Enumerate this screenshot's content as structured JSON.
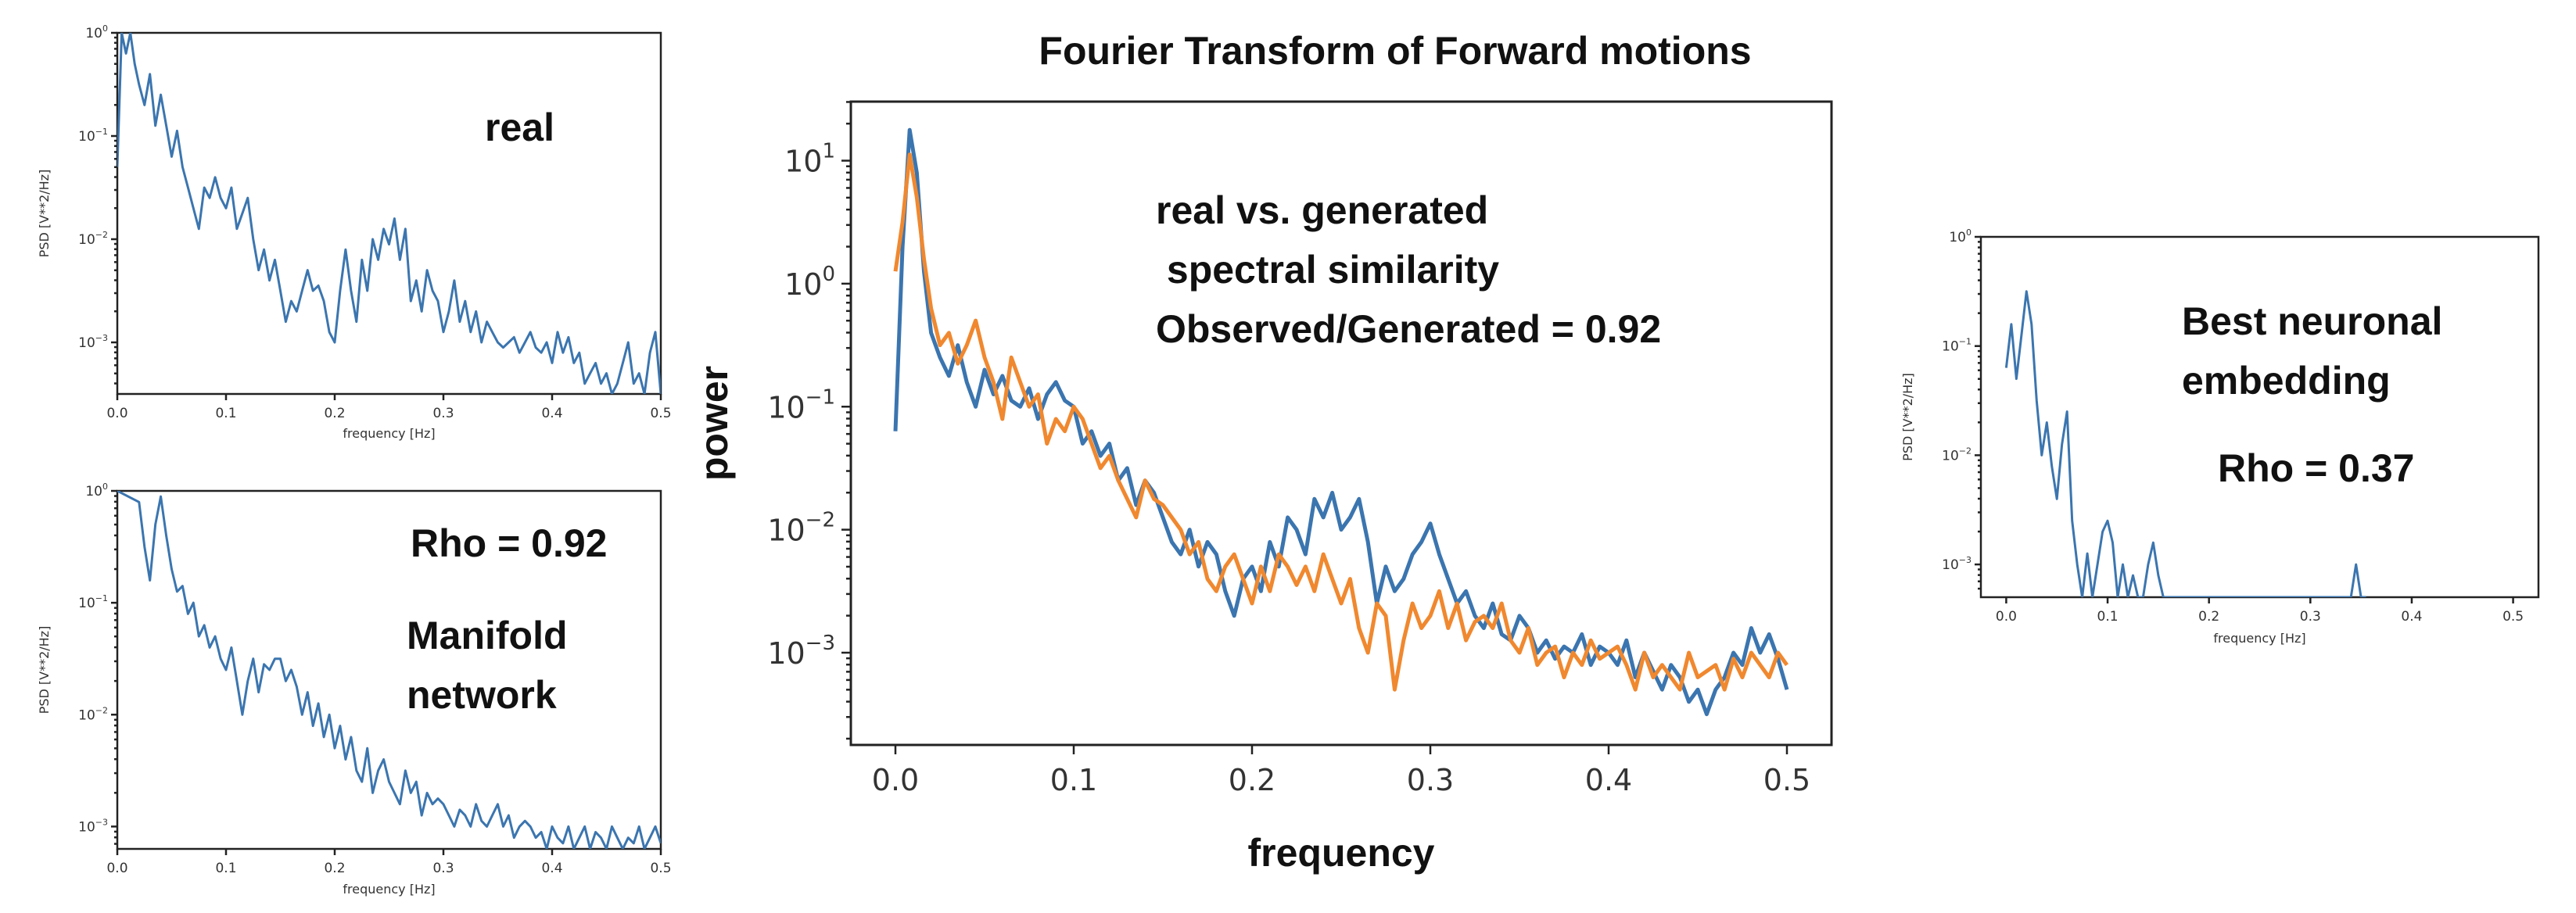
{
  "chart_data": [
    {
      "id": "real",
      "type": "line",
      "xlabel": "frequency [Hz]",
      "ylabel": "PSD [V**2/Hz]",
      "xlim": [
        0,
        0.5
      ],
      "ylim_log10": [
        -3.5,
        0
      ],
      "yscale": "log",
      "xticks": [
        "0.0",
        "0.1",
        "0.2",
        "0.3",
        "0.4",
        "0.5"
      ],
      "yticks": [
        {
          "exp": 0,
          "label": "10"
        },
        {
          "exp": -1,
          "label": "10"
        },
        {
          "exp": -2,
          "label": "10"
        },
        {
          "exp": -3,
          "label": "10"
        }
      ],
      "annotations": [
        "real"
      ],
      "color": "#3b75af",
      "series": [
        {
          "x": [
            0.0,
            0.004,
            0.008,
            0.012,
            0.016,
            0.02,
            0.025,
            0.03,
            0.035,
            0.04,
            0.045,
            0.05,
            0.055,
            0.06,
            0.065,
            0.07,
            0.075,
            0.08,
            0.085,
            0.09,
            0.095,
            0.1,
            0.105,
            0.11,
            0.115,
            0.12,
            0.125,
            0.13,
            0.135,
            0.14,
            0.145,
            0.15,
            0.155,
            0.16,
            0.165,
            0.17,
            0.175,
            0.18,
            0.185,
            0.19,
            0.195,
            0.2,
            0.205,
            0.21,
            0.215,
            0.22,
            0.225,
            0.23,
            0.235,
            0.24,
            0.245,
            0.25,
            0.255,
            0.26,
            0.265,
            0.27,
            0.275,
            0.28,
            0.285,
            0.29,
            0.295,
            0.3,
            0.305,
            0.31,
            0.315,
            0.32,
            0.325,
            0.33,
            0.335,
            0.34,
            0.345,
            0.35,
            0.355,
            0.36,
            0.365,
            0.37,
            0.375,
            0.38,
            0.385,
            0.39,
            0.395,
            0.4,
            0.405,
            0.41,
            0.415,
            0.42,
            0.425,
            0.43,
            0.435,
            0.44,
            0.445,
            0.45,
            0.455,
            0.46,
            0.465,
            0.47,
            0.475,
            0.48,
            0.485,
            0.49,
            0.495,
            0.5
          ],
          "log10": [
            -1.3,
            0.0,
            -0.2,
            0.0,
            -0.3,
            -0.5,
            -0.7,
            -0.4,
            -0.9,
            -0.6,
            -0.9,
            -1.2,
            -0.95,
            -1.3,
            -1.5,
            -1.7,
            -1.9,
            -1.5,
            -1.6,
            -1.4,
            -1.6,
            -1.7,
            -1.5,
            -1.9,
            -1.75,
            -1.6,
            -2.0,
            -2.3,
            -2.1,
            -2.4,
            -2.2,
            -2.5,
            -2.8,
            -2.6,
            -2.7,
            -2.5,
            -2.3,
            -2.5,
            -2.45,
            -2.6,
            -2.9,
            -3.0,
            -2.5,
            -2.1,
            -2.5,
            -2.8,
            -2.2,
            -2.5,
            -2.0,
            -2.2,
            -1.9,
            -2.05,
            -1.8,
            -2.2,
            -1.9,
            -2.6,
            -2.4,
            -2.7,
            -2.3,
            -2.5,
            -2.6,
            -2.9,
            -2.7,
            -2.4,
            -2.8,
            -2.6,
            -2.9,
            -2.7,
            -3.0,
            -2.8,
            -2.9,
            -3.0,
            -3.05,
            -3.0,
            -2.95,
            -3.1,
            -3.0,
            -2.9,
            -3.05,
            -3.1,
            -3.0,
            -3.2,
            -2.9,
            -3.1,
            -2.95,
            -3.2,
            -3.1,
            -3.4,
            -3.3,
            -3.2,
            -3.4,
            -3.3,
            -3.5,
            -3.4,
            -3.2,
            -3.0,
            -3.4,
            -3.3,
            -3.5,
            -3.1,
            -2.9,
            -3.5
          ]
        }
      ]
    },
    {
      "id": "manifold",
      "type": "line",
      "xlabel": "frequency [Hz]",
      "ylabel": "PSD [V**2/Hz]",
      "xlim": [
        0,
        0.5
      ],
      "ylim_log10": [
        -3.2,
        0
      ],
      "yscale": "log",
      "xticks": [
        "0.0",
        "0.1",
        "0.2",
        "0.3",
        "0.4",
        "0.5"
      ],
      "yticks": [
        {
          "exp": 0,
          "label": "10"
        },
        {
          "exp": -1,
          "label": "10"
        },
        {
          "exp": -2,
          "label": "10"
        },
        {
          "exp": -3,
          "label": "10"
        }
      ],
      "annotations": [
        "Rho = 0.92",
        "Manifold",
        "network"
      ],
      "color": "#3b75af",
      "series": [
        {
          "x": [
            0.0,
            0.02,
            0.025,
            0.03,
            0.035,
            0.04,
            0.045,
            0.05,
            0.055,
            0.06,
            0.065,
            0.07,
            0.075,
            0.08,
            0.085,
            0.09,
            0.095,
            0.1,
            0.105,
            0.11,
            0.115,
            0.12,
            0.125,
            0.13,
            0.135,
            0.14,
            0.145,
            0.15,
            0.155,
            0.16,
            0.165,
            0.17,
            0.175,
            0.18,
            0.185,
            0.19,
            0.195,
            0.2,
            0.205,
            0.21,
            0.215,
            0.22,
            0.225,
            0.23,
            0.235,
            0.24,
            0.245,
            0.25,
            0.255,
            0.26,
            0.265,
            0.27,
            0.275,
            0.28,
            0.285,
            0.29,
            0.295,
            0.3,
            0.305,
            0.31,
            0.315,
            0.32,
            0.325,
            0.33,
            0.335,
            0.34,
            0.345,
            0.35,
            0.355,
            0.36,
            0.365,
            0.37,
            0.375,
            0.38,
            0.385,
            0.39,
            0.395,
            0.4,
            0.405,
            0.41,
            0.415,
            0.42,
            0.425,
            0.43,
            0.435,
            0.44,
            0.445,
            0.45,
            0.455,
            0.46,
            0.465,
            0.47,
            0.475,
            0.48,
            0.485,
            0.49,
            0.495,
            0.5
          ],
          "log10": [
            0.0,
            -0.1,
            -0.5,
            -0.8,
            -0.3,
            -0.05,
            -0.4,
            -0.7,
            -0.9,
            -0.85,
            -1.1,
            -1.0,
            -1.3,
            -1.2,
            -1.4,
            -1.3,
            -1.5,
            -1.6,
            -1.4,
            -1.7,
            -2.0,
            -1.7,
            -1.5,
            -1.8,
            -1.55,
            -1.6,
            -1.5,
            -1.5,
            -1.7,
            -1.6,
            -1.75,
            -2.0,
            -1.8,
            -2.1,
            -1.9,
            -2.2,
            -2.0,
            -2.3,
            -2.1,
            -2.4,
            -2.2,
            -2.5,
            -2.6,
            -2.3,
            -2.7,
            -2.5,
            -2.4,
            -2.6,
            -2.7,
            -2.8,
            -2.5,
            -2.7,
            -2.6,
            -2.9,
            -2.7,
            -2.8,
            -2.75,
            -2.8,
            -2.9,
            -3.0,
            -2.85,
            -2.9,
            -3.0,
            -2.8,
            -2.95,
            -3.0,
            -2.9,
            -2.8,
            -3.0,
            -2.9,
            -3.1,
            -3.0,
            -2.95,
            -3.0,
            -3.1,
            -3.05,
            -3.2,
            -3.0,
            -3.1,
            -3.15,
            -3.0,
            -3.2,
            -3.1,
            -3.0,
            -3.2,
            -3.05,
            -3.1,
            -3.2,
            -3.0,
            -3.1,
            -3.2,
            -3.1,
            -3.15,
            -3.0,
            -3.2,
            -3.1,
            -3.0,
            -3.15
          ]
        }
      ]
    },
    {
      "id": "fourier",
      "type": "line",
      "title": "Fourier Transform of Forward motions",
      "xlabel": "frequency",
      "ylabel": "power",
      "xlim": [
        -0.025,
        0.525
      ],
      "ylim_log10": [
        -3.75,
        1.48
      ],
      "yscale": "log",
      "xticks": [
        "0.0",
        "0.1",
        "0.2",
        "0.3",
        "0.4",
        "0.5"
      ],
      "yticks": [
        {
          "exp": 1,
          "label": "10"
        },
        {
          "exp": 0,
          "label": "10"
        },
        {
          "exp": -1,
          "label": "10"
        },
        {
          "exp": -2,
          "label": "10"
        },
        {
          "exp": -3,
          "label": "10"
        }
      ],
      "annotations": [
        "real vs. generated",
        " spectral similarity",
        "Observed/Generated = 0.92"
      ],
      "series": [
        {
          "color": "#3b75af",
          "x": [
            0.0,
            0.004,
            0.008,
            0.012,
            0.016,
            0.02,
            0.025,
            0.03,
            0.035,
            0.04,
            0.045,
            0.05,
            0.055,
            0.06,
            0.065,
            0.07,
            0.075,
            0.08,
            0.085,
            0.09,
            0.095,
            0.1,
            0.105,
            0.11,
            0.115,
            0.12,
            0.125,
            0.13,
            0.135,
            0.14,
            0.145,
            0.15,
            0.155,
            0.16,
            0.165,
            0.17,
            0.175,
            0.18,
            0.185,
            0.19,
            0.195,
            0.2,
            0.205,
            0.21,
            0.215,
            0.22,
            0.225,
            0.23,
            0.235,
            0.24,
            0.245,
            0.25,
            0.255,
            0.26,
            0.265,
            0.27,
            0.275,
            0.28,
            0.285,
            0.29,
            0.295,
            0.3,
            0.305,
            0.31,
            0.315,
            0.32,
            0.325,
            0.33,
            0.335,
            0.34,
            0.345,
            0.35,
            0.355,
            0.36,
            0.365,
            0.37,
            0.375,
            0.38,
            0.385,
            0.39,
            0.395,
            0.4,
            0.405,
            0.41,
            0.415,
            0.42,
            0.425,
            0.43,
            0.435,
            0.44,
            0.445,
            0.45,
            0.455,
            0.46,
            0.465,
            0.47,
            0.475,
            0.48,
            0.485,
            0.49,
            0.495,
            0.5
          ],
          "log10": [
            -1.2,
            0.3,
            1.25,
            0.9,
            0.1,
            -0.4,
            -0.6,
            -0.75,
            -0.5,
            -0.8,
            -1.0,
            -0.7,
            -0.9,
            -0.75,
            -0.95,
            -1.0,
            -0.85,
            -1.1,
            -0.9,
            -0.8,
            -0.95,
            -1.0,
            -1.3,
            -1.2,
            -1.4,
            -1.3,
            -1.6,
            -1.5,
            -1.8,
            -1.6,
            -1.7,
            -1.9,
            -2.1,
            -2.2,
            -2.0,
            -2.3,
            -2.1,
            -2.2,
            -2.5,
            -2.7,
            -2.4,
            -2.3,
            -2.5,
            -2.1,
            -2.3,
            -1.9,
            -2.0,
            -2.2,
            -1.75,
            -1.9,
            -1.7,
            -2.0,
            -1.9,
            -1.75,
            -2.1,
            -2.6,
            -2.3,
            -2.5,
            -2.4,
            -2.2,
            -2.1,
            -1.95,
            -2.2,
            -2.4,
            -2.6,
            -2.5,
            -2.7,
            -2.8,
            -2.6,
            -2.85,
            -2.9,
            -2.7,
            -2.8,
            -3.0,
            -2.9,
            -3.05,
            -2.95,
            -3.0,
            -2.85,
            -3.1,
            -2.95,
            -3.0,
            -3.1,
            -2.9,
            -3.2,
            -3.0,
            -3.15,
            -3.3,
            -3.1,
            -3.2,
            -3.4,
            -3.3,
            -3.5,
            -3.3,
            -3.2,
            -3.0,
            -3.1,
            -2.8,
            -3.0,
            -2.85,
            -3.05,
            -3.3
          ]
        },
        {
          "color": "#f0882f",
          "x": [
            0.0,
            0.004,
            0.008,
            0.012,
            0.016,
            0.02,
            0.025,
            0.03,
            0.035,
            0.04,
            0.045,
            0.05,
            0.055,
            0.06,
            0.065,
            0.07,
            0.075,
            0.08,
            0.085,
            0.09,
            0.095,
            0.1,
            0.105,
            0.11,
            0.115,
            0.12,
            0.125,
            0.13,
            0.135,
            0.14,
            0.145,
            0.15,
            0.155,
            0.16,
            0.165,
            0.17,
            0.175,
            0.18,
            0.185,
            0.19,
            0.195,
            0.2,
            0.205,
            0.21,
            0.215,
            0.22,
            0.225,
            0.23,
            0.235,
            0.24,
            0.245,
            0.25,
            0.255,
            0.26,
            0.265,
            0.27,
            0.275,
            0.28,
            0.285,
            0.29,
            0.295,
            0.3,
            0.305,
            0.31,
            0.315,
            0.32,
            0.325,
            0.33,
            0.335,
            0.34,
            0.345,
            0.35,
            0.355,
            0.36,
            0.365,
            0.37,
            0.375,
            0.38,
            0.385,
            0.39,
            0.395,
            0.4,
            0.405,
            0.41,
            0.415,
            0.42,
            0.425,
            0.43,
            0.435,
            0.44,
            0.445,
            0.45,
            0.455,
            0.46,
            0.465,
            0.47,
            0.475,
            0.48,
            0.485,
            0.49,
            0.495,
            0.5
          ],
          "log10": [
            0.1,
            0.5,
            1.05,
            0.7,
            0.2,
            -0.2,
            -0.5,
            -0.4,
            -0.65,
            -0.5,
            -0.3,
            -0.6,
            -0.8,
            -1.1,
            -0.6,
            -0.8,
            -1.0,
            -0.9,
            -1.3,
            -1.1,
            -1.2,
            -1.0,
            -1.1,
            -1.3,
            -1.5,
            -1.4,
            -1.6,
            -1.75,
            -1.9,
            -1.6,
            -1.75,
            -1.8,
            -1.9,
            -2.0,
            -2.2,
            -2.1,
            -2.4,
            -2.5,
            -2.3,
            -2.2,
            -2.4,
            -2.6,
            -2.3,
            -2.5,
            -2.2,
            -2.3,
            -2.45,
            -2.3,
            -2.5,
            -2.2,
            -2.4,
            -2.6,
            -2.4,
            -2.8,
            -3.0,
            -2.6,
            -2.7,
            -3.3,
            -2.9,
            -2.6,
            -2.8,
            -2.7,
            -2.5,
            -2.8,
            -2.6,
            -2.9,
            -2.75,
            -2.7,
            -2.8,
            -2.6,
            -2.9,
            -3.0,
            -2.8,
            -3.1,
            -3.0,
            -2.95,
            -3.2,
            -3.0,
            -3.1,
            -2.9,
            -3.05,
            -3.0,
            -2.95,
            -3.1,
            -3.3,
            -3.0,
            -3.2,
            -3.1,
            -3.2,
            -3.3,
            -3.0,
            -3.2,
            -3.15,
            -3.1,
            -3.3,
            -3.05,
            -3.2,
            -3.0,
            -3.1,
            -3.2,
            -3.0,
            -3.1
          ]
        }
      ]
    },
    {
      "id": "neuronal",
      "type": "line",
      "xlabel": "frequency [Hz]",
      "ylabel": "PSD [V**2/Hz]",
      "xlim": [
        -0.025,
        0.525
      ],
      "ylim_log10": [
        -3.3,
        0
      ],
      "yscale": "log",
      "xticks": [
        "0.0",
        "0.1",
        "0.2",
        "0.3",
        "0.4",
        "0.5"
      ],
      "yticks": [
        {
          "exp": 0,
          "label": "10"
        },
        {
          "exp": -1,
          "label": "10"
        },
        {
          "exp": -2,
          "label": "10"
        },
        {
          "exp": -3,
          "label": "10"
        }
      ],
      "annotations": [
        "Best neuronal",
        "embedding",
        "Rho = 0.37"
      ],
      "color": "#3b75af",
      "series": [
        {
          "x": [
            0.0,
            0.005,
            0.01,
            0.015,
            0.02,
            0.025,
            0.03,
            0.035,
            0.04,
            0.045,
            0.05,
            0.055,
            0.06,
            0.065,
            0.07,
            0.075,
            0.08,
            0.085,
            0.09,
            0.095,
            0.1,
            0.105,
            0.11,
            0.115,
            0.12,
            0.125,
            0.13,
            0.135,
            0.14,
            0.145,
            0.15,
            0.155,
            0.16,
            0.3,
            0.34,
            0.345,
            0.35,
            0.355
          ],
          "log10": [
            -1.2,
            -0.8,
            -1.3,
            -0.9,
            -0.5,
            -0.8,
            -1.5,
            -2.0,
            -1.7,
            -2.1,
            -2.4,
            -1.9,
            -1.6,
            -2.6,
            -3.0,
            -3.3,
            -2.9,
            -3.3,
            -3.0,
            -2.7,
            -2.6,
            -2.8,
            -3.3,
            -3.0,
            -3.3,
            -3.1,
            -3.3,
            -3.3,
            -3.0,
            -2.8,
            -3.1,
            -3.3,
            -3.3,
            -3.3,
            -3.3,
            -3.0,
            -3.3,
            -3.3
          ]
        }
      ]
    }
  ]
}
